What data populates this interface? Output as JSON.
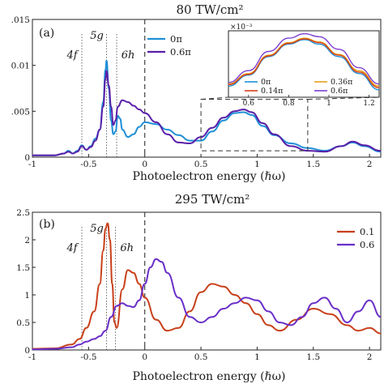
{
  "chart_data": [
    {
      "type": "line",
      "panel_label": "(a)",
      "title": "80 TW/cm²",
      "xlabel": "Photoelectron energy (ℏω)",
      "ylabel": "",
      "xlim": [
        -1,
        2.1
      ],
      "ylim": [
        0,
        0.015
      ],
      "xticks": [
        "-1",
        "-0.5",
        "0",
        "0.5",
        "1",
        "1.5",
        "2"
      ],
      "yticks": [
        "0",
        ".005",
        "0.01",
        ".015"
      ],
      "annotations": [
        "4f",
        "5g",
        "6h"
      ],
      "annotation_x": [
        -0.56,
        -0.34,
        -0.25
      ],
      "legend_position": "top-center",
      "series": [
        {
          "name": "0π",
          "color": "#1f8fd6",
          "x": [
            -1.0,
            -0.8,
            -0.72,
            -0.68,
            -0.64,
            -0.6,
            -0.56,
            -0.52,
            -0.48,
            -0.44,
            -0.4,
            -0.37,
            -0.35,
            -0.34,
            -0.32,
            -0.3,
            -0.28,
            -0.26,
            -0.24,
            -0.22,
            -0.2,
            -0.15,
            -0.1,
            -0.05,
            0.0,
            0.1,
            0.2,
            0.3,
            0.4,
            0.5,
            0.6,
            0.7,
            0.8,
            0.88,
            0.95,
            1.05,
            1.15,
            1.3,
            1.45,
            1.6,
            1.75,
            1.85,
            1.95,
            2.1
          ],
          "y": [
            0.0002,
            0.0002,
            0.0004,
            0.0007,
            0.0004,
            0.0007,
            0.0013,
            0.0008,
            0.0012,
            0.002,
            0.003,
            0.006,
            0.0095,
            0.0105,
            0.0075,
            0.004,
            0.0025,
            0.0028,
            0.0045,
            0.0042,
            0.003,
            0.0022,
            0.0025,
            0.0033,
            0.0038,
            0.0036,
            0.003,
            0.0024,
            0.0018,
            0.0018,
            0.0028,
            0.004,
            0.0048,
            0.0049,
            0.0046,
            0.0034,
            0.0024,
            0.0015,
            0.001,
            0.0007,
            0.0012,
            0.0016,
            0.0012,
            0.0006
          ]
        },
        {
          "name": "0.6π",
          "color": "#5a1fa8",
          "x": [
            -1.0,
            -0.8,
            -0.72,
            -0.68,
            -0.64,
            -0.6,
            -0.56,
            -0.52,
            -0.48,
            -0.44,
            -0.4,
            -0.37,
            -0.35,
            -0.34,
            -0.32,
            -0.3,
            -0.28,
            -0.26,
            -0.24,
            -0.2,
            -0.15,
            -0.1,
            -0.05,
            0.0,
            0.1,
            0.2,
            0.3,
            0.4,
            0.5,
            0.6,
            0.7,
            0.8,
            0.88,
            0.95,
            1.05,
            1.15,
            1.3,
            1.45,
            1.6,
            1.75,
            1.85,
            1.95,
            2.1
          ],
          "y": [
            0.0002,
            0.0002,
            0.0004,
            0.0006,
            0.0004,
            0.0006,
            0.0012,
            0.0008,
            0.0011,
            0.0018,
            0.003,
            0.0055,
            0.0085,
            0.0094,
            0.0078,
            0.0055,
            0.0035,
            0.004,
            0.0055,
            0.0062,
            0.006,
            0.0056,
            0.0052,
            0.0048,
            0.0038,
            0.0025,
            0.0016,
            0.0015,
            0.0022,
            0.0032,
            0.0043,
            0.005,
            0.0052,
            0.0049,
            0.0037,
            0.0025,
            0.0012,
            0.0007,
            0.0006,
            0.0012,
            0.0017,
            0.0013,
            0.0007
          ]
        }
      ],
      "inset": {
        "xlim": [
          0.5,
          1.25
        ],
        "ylim": [
          4.4,
          5.3
        ],
        "scale_label": "×10⁻³",
        "xticks": [
          "0.6",
          "0.8",
          "1",
          "1.2"
        ],
        "series": [
          {
            "name": "0π",
            "color": "#1f8fd6",
            "x": [
              0.5,
              0.6,
              0.7,
              0.8,
              0.88,
              0.95,
              1.05,
              1.15,
              1.25
            ],
            "y": [
              4.55,
              4.7,
              4.95,
              5.12,
              5.18,
              5.12,
              4.95,
              4.72,
              4.5
            ]
          },
          {
            "name": "0.36π",
            "color": "#e8a21a",
            "x": [
              0.5,
              0.6,
              0.7,
              0.8,
              0.88,
              0.95,
              1.05,
              1.15,
              1.25
            ],
            "y": [
              4.58,
              4.72,
              4.97,
              5.14,
              5.2,
              5.15,
              4.98,
              4.76,
              4.55
            ]
          },
          {
            "name": "0.14π",
            "color": "#d7431a",
            "x": [
              0.5,
              0.6,
              0.7,
              0.8,
              0.88,
              0.95,
              1.05,
              1.15,
              1.25
            ],
            "y": [
              4.57,
              4.71,
              4.96,
              5.13,
              5.19,
              5.14,
              4.97,
              4.74,
              4.53
            ]
          },
          {
            "name": "0.6π",
            "color": "#7d3fd0",
            "x": [
              0.5,
              0.6,
              0.7,
              0.8,
              0.88,
              0.95,
              1.05,
              1.15,
              1.25
            ],
            "y": [
              4.6,
              4.76,
              5.02,
              5.2,
              5.26,
              5.22,
              5.05,
              4.8,
              4.58
            ]
          }
        ]
      }
    },
    {
      "type": "line",
      "panel_label": "(b)",
      "title": "295 TW/cm²",
      "xlabel": "Photoelectron energy (ℏω)",
      "ylabel": "",
      "xlim": [
        -1,
        2.1
      ],
      "ylim": [
        0,
        2.5
      ],
      "xticks": [
        "-1",
        "-0.5",
        "0",
        "0.5",
        "1",
        "1.5",
        "2"
      ],
      "yticks": [
        "0",
        "0.5",
        "1",
        "1.5",
        "2",
        "2.5"
      ],
      "annotations": [
        "4f",
        "5g",
        "6h"
      ],
      "annotation_x": [
        -0.56,
        -0.34,
        -0.26
      ],
      "legend_position": "top-right",
      "series": [
        {
          "name": "0.1",
          "color": "#c8401a",
          "x": [
            -1.0,
            -0.8,
            -0.65,
            -0.58,
            -0.52,
            -0.45,
            -0.4,
            -0.37,
            -0.35,
            -0.33,
            -0.31,
            -0.29,
            -0.27,
            -0.25,
            -0.2,
            -0.15,
            -0.1,
            -0.05,
            0.0,
            0.1,
            0.2,
            0.3,
            0.4,
            0.5,
            0.6,
            0.7,
            0.8,
            0.9,
            1.0,
            1.1,
            1.2,
            1.35,
            1.5,
            1.65,
            1.8,
            1.9,
            2.0,
            2.1
          ],
          "y": [
            0.02,
            0.03,
            0.1,
            0.2,
            0.4,
            0.7,
            1.2,
            1.8,
            2.2,
            2.3,
            2.0,
            1.2,
            0.5,
            0.4,
            1.1,
            1.45,
            1.4,
            1.2,
            0.95,
            0.55,
            0.35,
            0.4,
            0.7,
            1.05,
            1.2,
            1.15,
            1.0,
            0.85,
            0.65,
            0.45,
            0.35,
            0.55,
            0.75,
            0.65,
            0.45,
            0.35,
            0.4,
            0.3
          ]
        },
        {
          "name": "0.6",
          "color": "#6a2fc8",
          "x": [
            -1.0,
            -0.8,
            -0.65,
            -0.58,
            -0.52,
            -0.45,
            -0.4,
            -0.35,
            -0.3,
            -0.25,
            -0.2,
            -0.15,
            -0.1,
            -0.05,
            0.0,
            0.05,
            0.1,
            0.15,
            0.2,
            0.3,
            0.4,
            0.5,
            0.6,
            0.7,
            0.8,
            0.9,
            1.0,
            1.1,
            1.2,
            1.3,
            1.4,
            1.5,
            1.6,
            1.7,
            1.8,
            1.9,
            2.0,
            2.1
          ],
          "y": [
            0.01,
            0.02,
            0.05,
            0.1,
            0.15,
            0.2,
            0.25,
            0.35,
            0.6,
            0.8,
            0.85,
            0.8,
            0.78,
            0.9,
            1.2,
            1.5,
            1.65,
            1.6,
            1.4,
            0.95,
            0.6,
            0.5,
            0.6,
            0.75,
            0.85,
            0.95,
            0.9,
            0.7,
            0.5,
            0.45,
            0.6,
            0.85,
            0.95,
            0.75,
            0.5,
            0.7,
            0.9,
            0.6
          ]
        }
      ]
    }
  ]
}
